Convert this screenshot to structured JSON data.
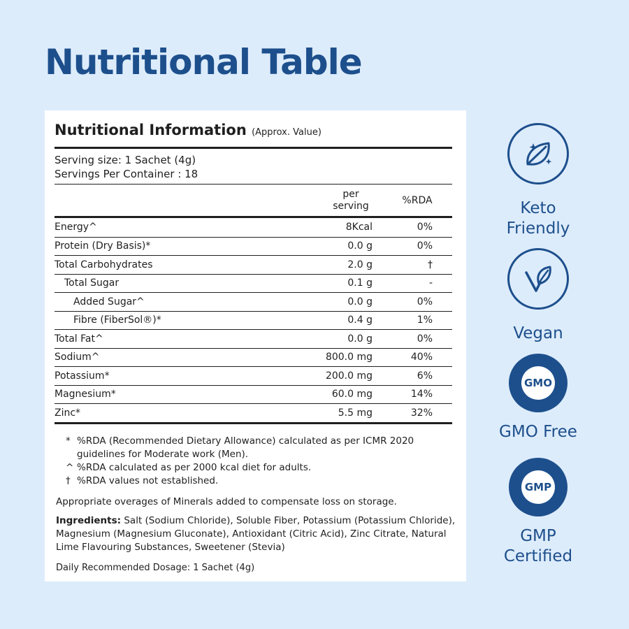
{
  "page_title": "Nutritional Table",
  "panel": {
    "heading": "Nutritional Information",
    "heading_note": "(Approx. Value)",
    "serving_size": "Serving size: 1 Sachet (4g)",
    "servings_per_container": "Servings Per Container : 18",
    "col_per_serving_line1": "per",
    "col_per_serving_line2": "serving",
    "col_rda": "%RDA",
    "rows": [
      {
        "name": "Energy^",
        "per": "8Kcal",
        "rda": "0%"
      },
      {
        "name": "Protein (Dry Basis)*",
        "per": "0.0 g",
        "rda": "0%"
      },
      {
        "name": "Total Carbohydrates",
        "per": "2.0 g",
        "rda": "†"
      },
      {
        "name": "Total Sugar",
        "per": "0.1 g",
        "rda": "-"
      },
      {
        "name": "Added Sugar^",
        "per": "0.0 g",
        "rda": "0%"
      },
      {
        "name": "Fibre (FiberSol®)*",
        "per": "0.4 g",
        "rda": "1%"
      },
      {
        "name": "Total Fat^",
        "per": "0.0 g",
        "rda": "0%"
      },
      {
        "name": "Sodium^",
        "per": "800.0 mg",
        "rda": "40%"
      },
      {
        "name": "Potassium*",
        "per": "200.0 mg",
        "rda": "6%"
      },
      {
        "name": "Magnesium*",
        "per": "60.0 mg",
        "rda": "14%"
      },
      {
        "name": "Zinc*",
        "per": "5.5 mg",
        "rda": "32%"
      }
    ],
    "notes": [
      {
        "mark": "*",
        "text": "%RDA (Recommended Dietary Allowance) calculated as per ICMR 2020 guidelines for Moderate work (Men)."
      },
      {
        "mark": "^",
        "text": "%RDA calculated as per 2000 kcal diet for adults."
      },
      {
        "mark": "†",
        "text": "%RDA values not established."
      }
    ],
    "overages": "Appropriate overages of Minerals added to compensate loss on storage.",
    "ingredients_label": "Ingredients:",
    "ingredients_text": " Salt (Sodium Chloride), Soluble Fiber, Potassium (Potassium Chloride), Magnesium (Magnesium Gluconate), Antioxidant (Citric Acid), Zinc Citrate, Natural Lime Flavouring Substances, Sweetener (Stevia)",
    "dosage": "Daily Recommended Dosage: 1 Sachet (4g)"
  },
  "badges": [
    {
      "icon": "leaf-sparkle-icon",
      "line1": "Keto",
      "line2": "Friendly"
    },
    {
      "icon": "vegan-leaf-icon",
      "line1": "Vegan",
      "line2": ""
    },
    {
      "icon": "gmo-seal-icon",
      "seal_text": "GMO",
      "line1": "GMO Free",
      "line2": ""
    },
    {
      "icon": "gmp-seal-icon",
      "seal_text": "GMP",
      "line1": "GMP",
      "line2": "Certified"
    }
  ],
  "colors": {
    "accent": "#1d4f8c",
    "background": "#ddecfb",
    "panel": "#ffffff",
    "text": "#1f1f1f"
  }
}
